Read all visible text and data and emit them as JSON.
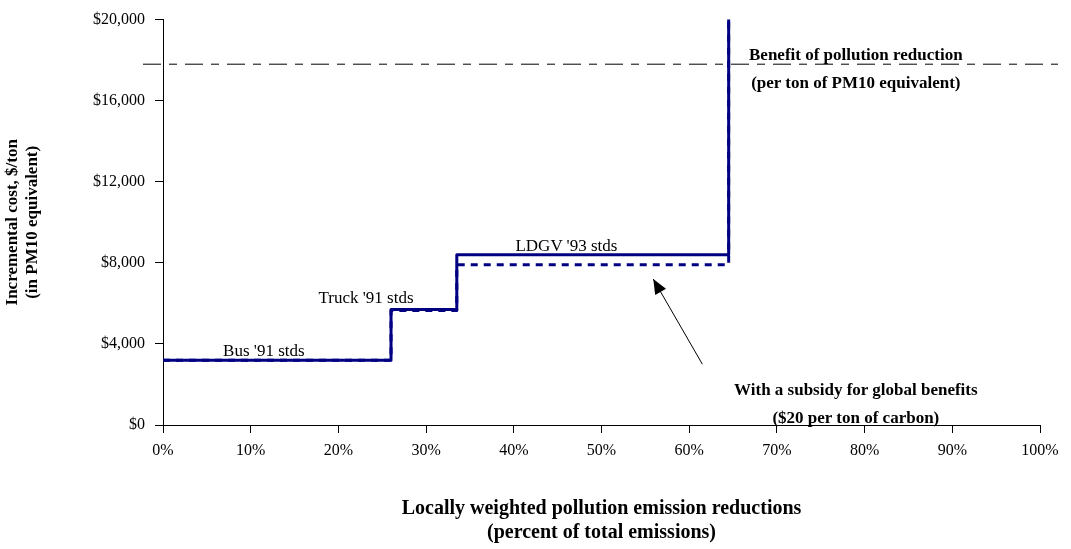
{
  "chart_data": {
    "type": "step",
    "xlabel": "Locally weighted pollution emission reductions\n(percent of total emissions)",
    "ylabel": "Incremental cost, $/ton\n(in PM10 equivalent)",
    "xlim": [
      0,
      100
    ],
    "xticks": [
      {
        "value": 0,
        "label": "0%"
      },
      {
        "value": 10,
        "label": "10%"
      },
      {
        "value": 20,
        "label": "20%"
      },
      {
        "value": 30,
        "label": "30%"
      },
      {
        "value": 40,
        "label": "40%"
      },
      {
        "value": 50,
        "label": "50%"
      },
      {
        "value": 60,
        "label": "60%"
      },
      {
        "value": 70,
        "label": "70%"
      },
      {
        "value": 80,
        "label": "80%"
      },
      {
        "value": 90,
        "label": "90%"
      },
      {
        "value": 100,
        "label": "100%"
      }
    ],
    "ylim": [
      0,
      20000
    ],
    "yticks": [
      {
        "value": 0,
        "label": "$0"
      },
      {
        "value": 4000,
        "label": "$4,000"
      },
      {
        "value": 8000,
        "label": "$8,000"
      },
      {
        "value": 12000,
        "label": "$12,000"
      },
      {
        "value": 16000,
        "label": "$16,000"
      },
      {
        "value": 20000,
        "label": "$20,000"
      }
    ],
    "series": [
      {
        "color": "#000080",
        "x": [
          0,
          26,
          33.5,
          64.5
        ],
        "values": [
          3200,
          5700,
          8400,
          20000
        ],
        "line_style": "solid"
      },
      {
        "color": "#000080",
        "x": [
          0,
          26,
          33.5,
          64.5
        ],
        "values": [
          3200,
          5650,
          7900,
          20000
        ],
        "line_style": "dashed"
      }
    ],
    "ref_lines": [
      {
        "axis": "y",
        "value": 17800,
        "label": "Benefit of pollution reduction\n(per ton of PM10 equivalent)",
        "color": "#000000",
        "line_style": "dashed"
      }
    ],
    "annotations": [
      {
        "text": "Bus '91 stds",
        "x": 11.5,
        "y": 3200
      },
      {
        "text": "Truck '91 stds",
        "x": 26,
        "y": 5700
      },
      {
        "text": "LDGV '93 stds",
        "x": 46,
        "y": 8400
      },
      "With a subsidy for global benefits\n($20 per ton of carbon)"
    ],
    "grid": false,
    "legend": false,
    "marker": "none"
  }
}
